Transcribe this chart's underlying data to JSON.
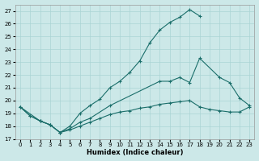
{
  "xlabel": "Humidex (Indice chaleur)",
  "bg_color": "#cce8e8",
  "grid_color": "#aad4d4",
  "line_color": "#1a6e6a",
  "xlim": [
    -0.5,
    23.5
  ],
  "ylim": [
    17,
    27.5
  ],
  "yticks": [
    17,
    18,
    19,
    20,
    21,
    22,
    23,
    24,
    25,
    26,
    27
  ],
  "xticks": [
    0,
    1,
    2,
    3,
    4,
    5,
    6,
    7,
    8,
    9,
    10,
    11,
    12,
    13,
    14,
    15,
    16,
    17,
    18,
    19,
    20,
    21,
    22,
    23
  ],
  "curve_high_x": [
    0,
    1,
    2,
    3,
    4,
    5,
    6,
    7,
    8,
    9,
    10,
    11,
    12,
    13,
    14,
    15,
    16,
    17,
    18
  ],
  "curve_high_y": [
    19.5,
    18.8,
    18.4,
    18.1,
    17.5,
    18.0,
    19.0,
    19.6,
    20.1,
    21.0,
    21.5,
    22.2,
    23.1,
    24.5,
    25.5,
    26.1,
    26.5,
    27.1,
    26.6
  ],
  "curve_mid_x": [
    0,
    2,
    3,
    4,
    5,
    6,
    7,
    9,
    14,
    15,
    16,
    17,
    18,
    20,
    21,
    22,
    23
  ],
  "curve_mid_y": [
    19.5,
    18.4,
    18.1,
    17.5,
    17.8,
    18.3,
    18.6,
    19.6,
    21.5,
    21.5,
    21.8,
    21.4,
    23.3,
    21.8,
    21.4,
    20.2,
    19.6
  ],
  "curve_low_x": [
    0,
    1,
    2,
    3,
    4,
    5,
    6,
    7,
    8,
    9,
    10,
    11,
    12,
    13,
    14,
    15,
    16,
    17,
    18,
    19,
    20,
    21,
    22,
    23
  ],
  "curve_low_y": [
    19.5,
    18.8,
    18.4,
    18.1,
    17.5,
    17.7,
    18.0,
    18.3,
    18.6,
    18.9,
    19.1,
    19.2,
    19.4,
    19.5,
    19.7,
    19.8,
    19.9,
    20.0,
    19.5,
    19.3,
    19.2,
    19.1,
    19.1,
    19.5
  ]
}
